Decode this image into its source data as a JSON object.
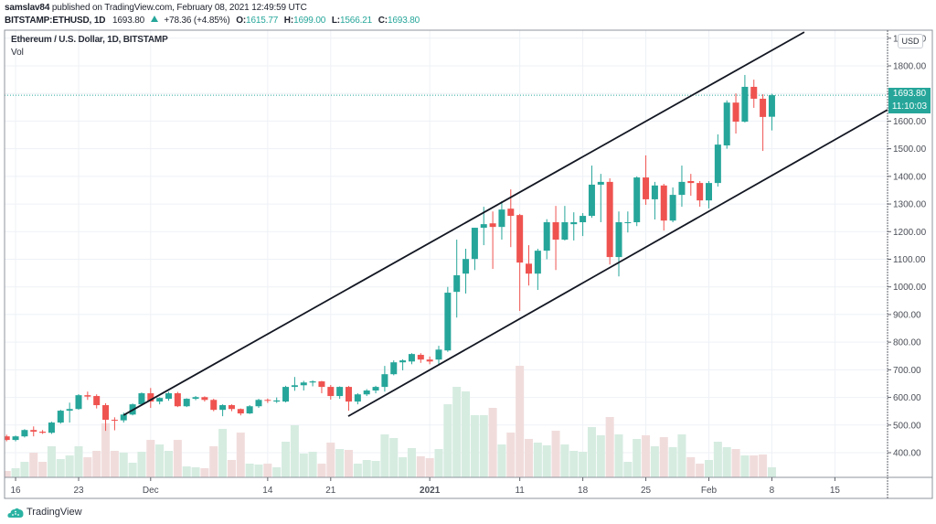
{
  "header": {
    "author": "samslav84",
    "published_text": " published on TradingView.com, February 08, 2021 12:49:59 UTC",
    "symbol": "BITSTAMP:ETHUSD, 1D",
    "last_price": "1693.80",
    "change_icon": "triangle-up-icon",
    "change": "+78.36 (+4.85%)",
    "ohlc": [
      {
        "label": "O:",
        "value": "1615.77"
      },
      {
        "label": "H:",
        "value": "1699.00"
      },
      {
        "label": "L:",
        "value": "1566.21"
      },
      {
        "label": "C:",
        "value": "1693.80"
      }
    ]
  },
  "chart": {
    "title": "Ethereum / U.S. Dollar, 1D, BITSTAMP",
    "volume_label": "Vol",
    "currency": "USD",
    "last_price_label": "1693.80",
    "countdown": "11:10:03"
  },
  "footer": {
    "brand": "TradingView",
    "logo_icon": "tradingview-cloud-icon"
  },
  "colors": {
    "up": "#26a69a",
    "down": "#ef5350",
    "volume_up": "#d6ece1",
    "volume_down": "#f1dcdc",
    "trend_line": "#131722",
    "grid": "#eef1f6"
  },
  "chart_data": {
    "type": "candlestick",
    "title": "Ethereum / U.S. Dollar, 1D, BITSTAMP",
    "xlabel": "",
    "ylabel": "USD",
    "ylim": [
      330,
      1920
    ],
    "grid": true,
    "legend": [
      "Vol"
    ],
    "y_ticks": [
      400,
      500,
      600,
      700,
      800,
      900,
      1000,
      1100,
      1200,
      1300,
      1400,
      1500,
      1600,
      1700,
      1800,
      1900
    ],
    "x_ticks": [
      {
        "text": "16",
        "i": 1
      },
      {
        "text": "23",
        "i": 8
      },
      {
        "text": "Dec",
        "i": 16
      },
      {
        "text": "14",
        "i": 29
      },
      {
        "text": "21",
        "i": 36
      },
      {
        "text": "2021",
        "i": 47,
        "bold": true
      },
      {
        "text": "11",
        "i": 57
      },
      {
        "text": "18",
        "i": 64
      },
      {
        "text": "25",
        "i": 71
      },
      {
        "text": "Feb",
        "i": 78
      },
      {
        "text": "8",
        "i": 85
      },
      {
        "text": "15",
        "i": 92
      }
    ],
    "last_price": 1693.8,
    "volume_max": 122,
    "columns": [
      "date",
      "open",
      "high",
      "low",
      "close",
      "volume_rel"
    ],
    "rows": [
      [
        "2020-11-15",
        459,
        465,
        441,
        446,
        7
      ],
      [
        "2020-11-16",
        446,
        462,
        441,
        459,
        10
      ],
      [
        "2020-11-17",
        459,
        485,
        455,
        482,
        17
      ],
      [
        "2020-11-18",
        482,
        495,
        459,
        476,
        27
      ],
      [
        "2020-11-19",
        476,
        482,
        468,
        472,
        17
      ],
      [
        "2020-11-20",
        472,
        512,
        468,
        509,
        34
      ],
      [
        "2020-11-21",
        509,
        555,
        505,
        552,
        20
      ],
      [
        "2020-11-22",
        552,
        581,
        509,
        558,
        24
      ],
      [
        "2020-11-23",
        558,
        612,
        555,
        608,
        34
      ],
      [
        "2020-11-24",
        608,
        621,
        591,
        603,
        22
      ],
      [
        "2020-11-25",
        605,
        611,
        560,
        572,
        29
      ],
      [
        "2020-11-26",
        572,
        579,
        479,
        519,
        59
      ],
      [
        "2020-11-27",
        519,
        528,
        481,
        517,
        29
      ],
      [
        "2020-11-28",
        517,
        545,
        509,
        538,
        27
      ],
      [
        "2020-11-29",
        538,
        578,
        535,
        575,
        16
      ],
      [
        "2020-11-30",
        575,
        618,
        570,
        615,
        28
      ],
      [
        "2020-12-01",
        615,
        634,
        562,
        585,
        41
      ],
      [
        "2020-12-02",
        585,
        600,
        575,
        598,
        36
      ],
      [
        "2020-12-03",
        595,
        620,
        588,
        615,
        29
      ],
      [
        "2020-12-04",
        615,
        620,
        565,
        568,
        41
      ],
      [
        "2020-12-05",
        568,
        597,
        565,
        595,
        12
      ],
      [
        "2020-12-06",
        595,
        605,
        590,
        601,
        11
      ],
      [
        "2020-12-07",
        601,
        604,
        585,
        591,
        10
      ],
      [
        "2020-12-08",
        591,
        595,
        550,
        555,
        34
      ],
      [
        "2020-12-09",
        555,
        575,
        532,
        572,
        53
      ],
      [
        "2020-12-10",
        572,
        575,
        550,
        558,
        19
      ],
      [
        "2020-12-11",
        558,
        560,
        535,
        542,
        49
      ],
      [
        "2020-12-12",
        542,
        572,
        540,
        568,
        15
      ],
      [
        "2020-12-13",
        568,
        595,
        562,
        591,
        14
      ],
      [
        "2020-12-14",
        591,
        596,
        580,
        588,
        15
      ],
      [
        "2020-12-15",
        585,
        600,
        580,
        589,
        11
      ],
      [
        "2020-12-16",
        585,
        642,
        582,
        638,
        39
      ],
      [
        "2020-12-17",
        638,
        674,
        624,
        644,
        57
      ],
      [
        "2020-12-18",
        644,
        660,
        625,
        654,
        26
      ],
      [
        "2020-12-19",
        654,
        662,
        640,
        658,
        28
      ],
      [
        "2020-12-20",
        658,
        660,
        615,
        638,
        15
      ],
      [
        "2020-12-21",
        638,
        645,
        592,
        605,
        38
      ],
      [
        "2020-12-22",
        605,
        640,
        595,
        638,
        31
      ],
      [
        "2020-12-23",
        638,
        641,
        552,
        585,
        30
      ],
      [
        "2020-12-24",
        585,
        615,
        575,
        611,
        15
      ],
      [
        "2020-12-25",
        611,
        630,
        605,
        625,
        19
      ],
      [
        "2020-12-26",
        625,
        642,
        615,
        638,
        18
      ],
      [
        "2020-12-27",
        638,
        714,
        621,
        684,
        47
      ],
      [
        "2020-12-28",
        684,
        734,
        680,
        727,
        43
      ],
      [
        "2020-12-29",
        727,
        738,
        698,
        734,
        22
      ],
      [
        "2020-12-30",
        730,
        760,
        720,
        757,
        32
      ],
      [
        "2020-12-31",
        754,
        760,
        725,
        737,
        23
      ],
      [
        "2021-01-01",
        737,
        748,
        720,
        730,
        21
      ],
      [
        "2021-01-02",
        737,
        787,
        716,
        773,
        31
      ],
      [
        "2021-01-03",
        770,
        1000,
        765,
        979,
        80
      ],
      [
        "2021-01-04",
        982,
        1171,
        889,
        1042,
        99
      ],
      [
        "2021-01-05",
        1048,
        1138,
        976,
        1101,
        94
      ],
      [
        "2021-01-06",
        1101,
        1214,
        1061,
        1214,
        68
      ],
      [
        "2021-01-07",
        1214,
        1290,
        1151,
        1227,
        68
      ],
      [
        "2021-01-08",
        1230,
        1273,
        1065,
        1217,
        76
      ],
      [
        "2021-01-09",
        1217,
        1310,
        1171,
        1280,
        36
      ],
      [
        "2021-01-10",
        1283,
        1353,
        1144,
        1257,
        49
      ],
      [
        "2021-01-11",
        1260,
        1264,
        913,
        1088,
        122
      ],
      [
        "2021-01-12",
        1084,
        1151,
        1005,
        1048,
        42
      ],
      [
        "2021-01-13",
        1048,
        1138,
        989,
        1131,
        38
      ],
      [
        "2021-01-14",
        1131,
        1245,
        1100,
        1234,
        35
      ],
      [
        "2021-01-15",
        1234,
        1293,
        1061,
        1171,
        51
      ],
      [
        "2021-01-16",
        1171,
        1293,
        1168,
        1234,
        36
      ],
      [
        "2021-01-17",
        1227,
        1270,
        1168,
        1234,
        29
      ],
      [
        "2021-01-18",
        1234,
        1267,
        1184,
        1257,
        28
      ],
      [
        "2021-01-19",
        1257,
        1439,
        1250,
        1370,
        55
      ],
      [
        "2021-01-20",
        1370,
        1409,
        1234,
        1380,
        46
      ],
      [
        "2021-01-21",
        1380,
        1393,
        1081,
        1108,
        66
      ],
      [
        "2021-01-22",
        1108,
        1273,
        1038,
        1234,
        47
      ],
      [
        "2021-01-23",
        1232,
        1273,
        1197,
        1234,
        17
      ],
      [
        "2021-01-24",
        1234,
        1400,
        1220,
        1396,
        42
      ],
      [
        "2021-01-25",
        1396,
        1476,
        1297,
        1317,
        46
      ],
      [
        "2021-01-26",
        1317,
        1380,
        1244,
        1367,
        34
      ],
      [
        "2021-01-27",
        1367,
        1373,
        1204,
        1240,
        44
      ],
      [
        "2021-01-28",
        1240,
        1360,
        1234,
        1333,
        33
      ],
      [
        "2021-01-29",
        1333,
        1439,
        1290,
        1380,
        47
      ],
      [
        "2021-01-30",
        1383,
        1409,
        1330,
        1376,
        22
      ],
      [
        "2021-01-31",
        1376,
        1383,
        1290,
        1313,
        15
      ],
      [
        "2021-02-01",
        1313,
        1383,
        1284,
        1376,
        19
      ],
      [
        "2021-02-02",
        1376,
        1552,
        1363,
        1515,
        39
      ],
      [
        "2021-02-03",
        1512,
        1675,
        1500,
        1667,
        33
      ],
      [
        "2021-02-04",
        1667,
        1700,
        1555,
        1598,
        31
      ],
      [
        "2021-02-05",
        1598,
        1767,
        1595,
        1724,
        24
      ],
      [
        "2021-02-06",
        1724,
        1750,
        1648,
        1681,
        24
      ],
      [
        "2021-02-07",
        1681,
        1697,
        1492,
        1615,
        25
      ],
      [
        "2021-02-08",
        1615.77,
        1699,
        1566.21,
        1693.8,
        11
      ]
    ],
    "trend_lines": [
      {
        "name": "channel-upper",
        "from": {
          "i": 13,
          "price": 536
        },
        "to": {
          "i": 88.6,
          "price": 1922
        }
      },
      {
        "name": "channel-lower",
        "from": {
          "i": 37.95,
          "price": 532
        },
        "to": {
          "i": 97.85,
          "price": 1641
        }
      }
    ]
  }
}
